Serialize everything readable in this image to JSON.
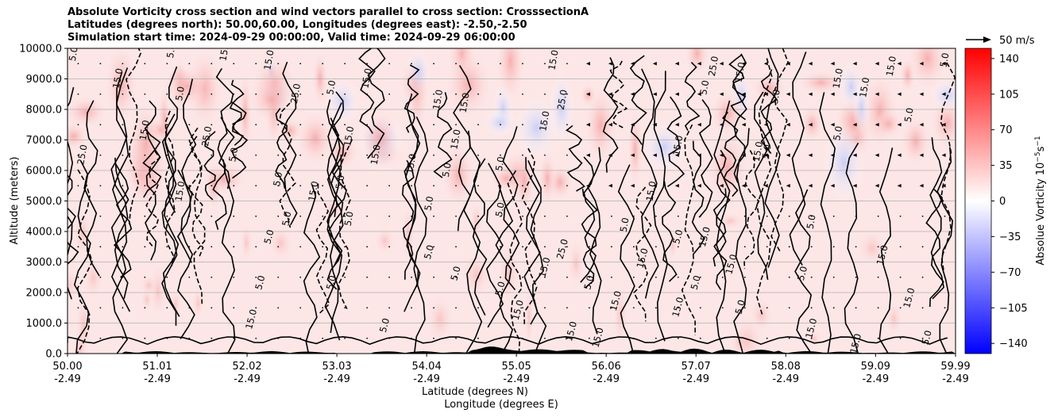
{
  "chart_data": {
    "type": "heatmap",
    "title_lines": [
      "Absolute Vorticity cross section and wind vectors parallel to cross section: CrosssectionA",
      "Latitudes (degrees north): 50.00,60.00, Longitudes (degrees east): -2.50,-2.50",
      "Simulation start time: 2024-09-29 00:00:00, Valid time: 2024-09-29 06:00:00"
    ],
    "xlabel_line1": "Latitude (degrees N)",
    "xlabel_line2": "Longitude (degrees E)",
    "ylabel": "Altitude (meters)",
    "colorbar_label": "Absolue Vorticity 10",
    "colorbar_label_exp": "−5",
    "colorbar_label_unit": "s",
    "colorbar_label_unit_exp": "−1",
    "x_range": [
      50.0,
      59.99
    ],
    "ylim": [
      0,
      10000
    ],
    "x_ticks": [
      {
        "lat": "50.00",
        "lon": "-2.49"
      },
      {
        "lat": "51.01",
        "lon": "-2.49"
      },
      {
        "lat": "52.02",
        "lon": "-2.49"
      },
      {
        "lat": "53.03",
        "lon": "-2.49"
      },
      {
        "lat": "54.04",
        "lon": "-2.49"
      },
      {
        "lat": "55.05",
        "lon": "-2.49"
      },
      {
        "lat": "56.06",
        "lon": "-2.49"
      },
      {
        "lat": "57.07",
        "lon": "-2.49"
      },
      {
        "lat": "58.08",
        "lon": "-2.49"
      },
      {
        "lat": "59.09",
        "lon": "-2.49"
      },
      {
        "lat": "59.99",
        "lon": "-2.49"
      }
    ],
    "y_ticks": [
      "0.0",
      "1000.0",
      "2000.0",
      "3000.0",
      "4000.0",
      "5000.0",
      "6000.0",
      "7000.0",
      "8000.0",
      "9000.0",
      "10000.0"
    ],
    "colorbar_ticks": [
      "-140",
      "-105",
      "-70",
      "-35",
      "0",
      "35",
      "70",
      "105",
      "140"
    ],
    "colorbar_range": [
      -150,
      150
    ],
    "grid": "horizontal",
    "quiver_key_label": "50 m/s",
    "contour_labels": [
      {
        "text": "5.0",
        "lat": 50.1,
        "alt": 9800
      },
      {
        "text": "15.0",
        "lat": 50.6,
        "alt": 9000
      },
      {
        "text": "25.0",
        "lat": 50.2,
        "alt": 6500
      },
      {
        "text": "15.0",
        "lat": 50.9,
        "alt": 7300
      },
      {
        "text": "5.0",
        "lat": 51.2,
        "alt": 9900
      },
      {
        "text": "15.0",
        "lat": 51.8,
        "alt": 9900
      },
      {
        "text": "5.0",
        "lat": 51.3,
        "alt": 8500
      },
      {
        "text": "25.0",
        "lat": 51.6,
        "alt": 7100
      },
      {
        "text": "5.0",
        "lat": 51.9,
        "alt": 6500
      },
      {
        "text": "15.0",
        "lat": 51.3,
        "alt": 5300
      },
      {
        "text": "15.0",
        "lat": 52.3,
        "alt": 9600
      },
      {
        "text": "25.0",
        "lat": 52.6,
        "alt": 8500
      },
      {
        "text": "5.0",
        "lat": 52.4,
        "alt": 5700
      },
      {
        "text": "5.0",
        "lat": 52.3,
        "alt": 3800
      },
      {
        "text": "5.0",
        "lat": 52.2,
        "alt": 2300
      },
      {
        "text": "15.0",
        "lat": 52.1,
        "alt": 1100
      },
      {
        "text": "5.0",
        "lat": 53.0,
        "alt": 8700
      },
      {
        "text": "15.0",
        "lat": 53.2,
        "alt": 7100
      },
      {
        "text": "15.0",
        "lat": 52.8,
        "alt": 5300
      },
      {
        "text": "5.0",
        "lat": 53.1,
        "alt": 5600
      },
      {
        "text": "5.0",
        "lat": 52.5,
        "alt": 4400
      },
      {
        "text": "5.0",
        "lat": 53.0,
        "alt": 2300
      },
      {
        "text": "5.0",
        "lat": 53.6,
        "alt": 900
      },
      {
        "text": "15.0",
        "lat": 53.4,
        "alt": 9000
      },
      {
        "text": "15.0",
        "lat": 53.5,
        "alt": 6500
      },
      {
        "text": "5.0",
        "lat": 53.2,
        "alt": 4400
      },
      {
        "text": "15.0",
        "lat": 53.9,
        "alt": 6200
      },
      {
        "text": "15.0",
        "lat": 54.2,
        "alt": 8300
      },
      {
        "text": "5.0",
        "lat": 54.1,
        "alt": 4900
      },
      {
        "text": "15.0",
        "lat": 54.4,
        "alt": 7000
      },
      {
        "text": "5.0",
        "lat": 54.3,
        "alt": 6000
      },
      {
        "text": "5.0",
        "lat": 54.1,
        "alt": 3300
      },
      {
        "text": "5.0",
        "lat": 54.4,
        "alt": 2600
      },
      {
        "text": "15.0",
        "lat": 54.5,
        "alt": 8200
      },
      {
        "text": "5.0",
        "lat": 54.9,
        "alt": 6200
      },
      {
        "text": "5.0",
        "lat": 54.9,
        "alt": 4700
      },
      {
        "text": "5.0",
        "lat": 54.9,
        "alt": 2100
      },
      {
        "text": "15.0",
        "lat": 55.1,
        "alt": 1400
      },
      {
        "text": "15.0",
        "lat": 55.4,
        "alt": 7600
      },
      {
        "text": "25.0",
        "lat": 55.6,
        "alt": 8300
      },
      {
        "text": "25.0",
        "lat": 55.6,
        "alt": 3400
      },
      {
        "text": "15.0",
        "lat": 55.4,
        "alt": 2800
      },
      {
        "text": "15.0",
        "lat": 55.7,
        "alt": 700
      },
      {
        "text": "15.0",
        "lat": 55.5,
        "alt": 9600
      },
      {
        "text": "5.0",
        "lat": 55.9,
        "alt": 2300
      },
      {
        "text": "15.0",
        "lat": 56.2,
        "alt": 1700
      },
      {
        "text": "15.0",
        "lat": 56.0,
        "alt": 500
      },
      {
        "text": "15.0",
        "lat": 56.6,
        "alt": 5300
      },
      {
        "text": "5.0",
        "lat": 56.3,
        "alt": 4200
      },
      {
        "text": "15.0",
        "lat": 56.5,
        "alt": 3100
      },
      {
        "text": "15.0",
        "lat": 56.9,
        "alt": 6800
      },
      {
        "text": "5.0",
        "lat": 56.9,
        "alt": 3800
      },
      {
        "text": "15.0",
        "lat": 57.2,
        "alt": 3800
      },
      {
        "text": "5.0",
        "lat": 57.1,
        "alt": 2300
      },
      {
        "text": "15.0",
        "lat": 56.9,
        "alt": 1500
      },
      {
        "text": "25.0",
        "lat": 57.3,
        "alt": 9400
      },
      {
        "text": "5.0",
        "lat": 57.2,
        "alt": 8700
      },
      {
        "text": "15.0",
        "lat": 57.6,
        "alt": 9200
      },
      {
        "text": "15.0",
        "lat": 57.5,
        "alt": 2900
      },
      {
        "text": "5.0",
        "lat": 57.9,
        "alt": 6600
      },
      {
        "text": "15.0",
        "lat": 57.8,
        "alt": 6600
      },
      {
        "text": "5.0",
        "lat": 57.6,
        "alt": 1500
      },
      {
        "text": "5.0",
        "lat": 58.0,
        "alt": 8400
      },
      {
        "text": "5.0",
        "lat": 58.4,
        "alt": 4300
      },
      {
        "text": "5.0",
        "lat": 58.3,
        "alt": 2600
      },
      {
        "text": "15.0",
        "lat": 58.4,
        "alt": 800
      },
      {
        "text": "15.0",
        "lat": 58.7,
        "alt": 9000
      },
      {
        "text": "5.0",
        "lat": 58.7,
        "alt": 7200
      },
      {
        "text": "15.0",
        "lat": 58.9,
        "alt": 300
      },
      {
        "text": "15.0",
        "lat": 59.0,
        "alt": 8700
      },
      {
        "text": "15.0",
        "lat": 59.2,
        "alt": 3200
      },
      {
        "text": "15.0",
        "lat": 59.3,
        "alt": 9400
      },
      {
        "text": "5.0",
        "lat": 59.5,
        "alt": 7800
      },
      {
        "text": "15.0",
        "lat": 59.5,
        "alt": 1800
      },
      {
        "text": "5.0",
        "lat": 59.9,
        "alt": 9600
      },
      {
        "text": "5.0",
        "lat": 59.7,
        "alt": 500
      }
    ]
  }
}
